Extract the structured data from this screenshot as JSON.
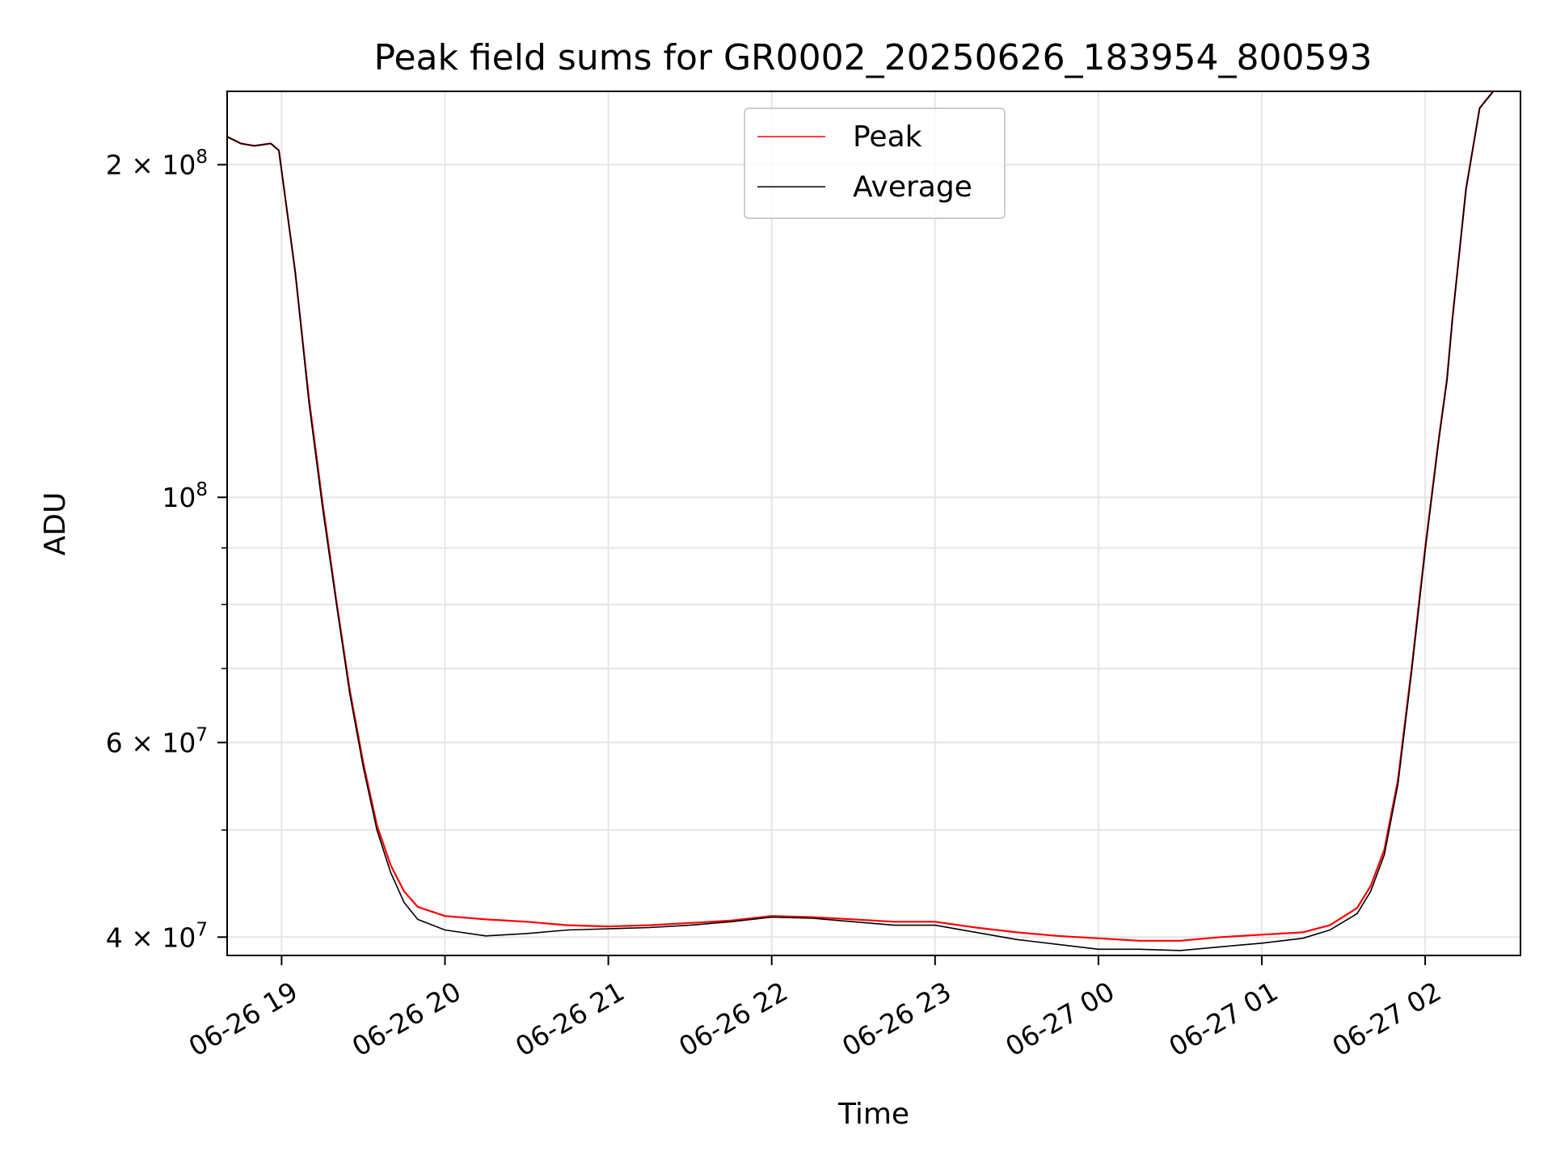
{
  "chart_data": {
    "type": "line",
    "title": "Peak field sums for GR0002_20250626_183954_800593",
    "xlabel": "Time",
    "ylabel": "ADU",
    "yscale": "log",
    "ylim": [
      38500000,
      233000000
    ],
    "xlim": [
      "2025-06-26 18:40",
      "2025-06-27 02:35"
    ],
    "grid": true,
    "legend_position": "upper center",
    "x_ticks": [
      "2025-06-26 19:00",
      "2025-06-26 20:00",
      "2025-06-26 21:00",
      "2025-06-26 22:00",
      "2025-06-26 23:00",
      "2025-06-27 00:00",
      "2025-06-27 01:00",
      "2025-06-27 02:00"
    ],
    "x_tick_labels": [
      "06-26 19",
      "06-26 20",
      "06-26 21",
      "06-26 22",
      "06-26 23",
      "06-27 00",
      "06-27 01",
      "06-27 02"
    ],
    "y_ticks": [
      {
        "value": 40000000,
        "mantissa": "4",
        "exp": "7"
      },
      {
        "value": 60000000,
        "mantissa": "6",
        "exp": "7"
      },
      {
        "value": 100000000,
        "mantissa": "",
        "exp": "8"
      },
      {
        "value": 200000000,
        "mantissa": "2",
        "exp": "8"
      }
    ],
    "y_minor_ticks": [
      50000000,
      70000000,
      80000000,
      90000000
    ],
    "series": [
      {
        "name": "Peak",
        "color": "#ff0000",
        "x": [
          "2025-06-26 18:40",
          "2025-06-26 18:45",
          "2025-06-26 18:50",
          "2025-06-26 18:56",
          "2025-06-26 18:59",
          "2025-06-26 19:05",
          "2025-06-26 19:10",
          "2025-06-26 19:15",
          "2025-06-26 19:20",
          "2025-06-26 19:25",
          "2025-06-26 19:30",
          "2025-06-26 19:35",
          "2025-06-26 19:40",
          "2025-06-26 19:45",
          "2025-06-26 19:50",
          "2025-06-26 20:00",
          "2025-06-26 20:15",
          "2025-06-26 20:30",
          "2025-06-26 20:45",
          "2025-06-26 21:00",
          "2025-06-26 21:15",
          "2025-06-26 21:30",
          "2025-06-26 21:45",
          "2025-06-26 22:00",
          "2025-06-26 22:15",
          "2025-06-26 22:30",
          "2025-06-26 22:45",
          "2025-06-26 23:00",
          "2025-06-26 23:15",
          "2025-06-26 23:30",
          "2025-06-26 23:45",
          "2025-06-27 00:00",
          "2025-06-27 00:15",
          "2025-06-27 00:30",
          "2025-06-27 00:45",
          "2025-06-27 01:00",
          "2025-06-27 01:15",
          "2025-06-27 01:25",
          "2025-06-27 01:35",
          "2025-06-27 01:40",
          "2025-06-27 01:45",
          "2025-06-27 01:50",
          "2025-06-27 01:55",
          "2025-06-27 02:00",
          "2025-06-27 02:05",
          "2025-06-27 02:08",
          "2025-06-27 02:10",
          "2025-06-27 02:15",
          "2025-06-27 02:20",
          "2025-06-27 02:25"
        ],
        "y": [
          212000000,
          209000000,
          208000000,
          209000000,
          206000000,
          160000000,
          123000000,
          99000000,
          81000000,
          67000000,
          57500000,
          50500000,
          46500000,
          44000000,
          42600000,
          41800000,
          41500000,
          41300000,
          41000000,
          40900000,
          41000000,
          41200000,
          41400000,
          41800000,
          41700000,
          41500000,
          41300000,
          41300000,
          40800000,
          40400000,
          40100000,
          39900000,
          39700000,
          39700000,
          40000000,
          40200000,
          40400000,
          41000000,
          42500000,
          44500000,
          48000000,
          55500000,
          70000000,
          90000000,
          113000000,
          128000000,
          145000000,
          190000000,
          225000000,
          233000000
        ]
      },
      {
        "name": "Average",
        "color": "#000000",
        "x": [
          "2025-06-26 18:40",
          "2025-06-26 18:45",
          "2025-06-26 18:50",
          "2025-06-26 18:56",
          "2025-06-26 18:59",
          "2025-06-26 19:05",
          "2025-06-26 19:10",
          "2025-06-26 19:15",
          "2025-06-26 19:20",
          "2025-06-26 19:25",
          "2025-06-26 19:30",
          "2025-06-26 19:35",
          "2025-06-26 19:40",
          "2025-06-26 19:45",
          "2025-06-26 19:50",
          "2025-06-26 20:00",
          "2025-06-26 20:15",
          "2025-06-26 20:30",
          "2025-06-26 20:45",
          "2025-06-26 21:00",
          "2025-06-26 21:15",
          "2025-06-26 21:30",
          "2025-06-26 21:45",
          "2025-06-26 22:00",
          "2025-06-26 22:15",
          "2025-06-26 22:30",
          "2025-06-26 22:45",
          "2025-06-26 23:00",
          "2025-06-26 23:15",
          "2025-06-26 23:30",
          "2025-06-26 23:45",
          "2025-06-27 00:00",
          "2025-06-27 00:15",
          "2025-06-27 00:30",
          "2025-06-27 00:45",
          "2025-06-27 01:00",
          "2025-06-27 01:15",
          "2025-06-27 01:25",
          "2025-06-27 01:35",
          "2025-06-27 01:40",
          "2025-06-27 01:45",
          "2025-06-27 01:50",
          "2025-06-27 01:55",
          "2025-06-27 02:00",
          "2025-06-27 02:05",
          "2025-06-27 02:08",
          "2025-06-27 02:10",
          "2025-06-27 02:15",
          "2025-06-27 02:20",
          "2025-06-27 02:25"
        ],
        "y": [
          212000000,
          209000000,
          208000000,
          209000000,
          206000000,
          160000000,
          122000000,
          98000000,
          80500000,
          66500000,
          57000000,
          50000000,
          45800000,
          43000000,
          41500000,
          40600000,
          40100000,
          40300000,
          40600000,
          40700000,
          40800000,
          41000000,
          41300000,
          41700000,
          41600000,
          41300000,
          41000000,
          41000000,
          40400000,
          39800000,
          39400000,
          39000000,
          39000000,
          38900000,
          39200000,
          39500000,
          39900000,
          40600000,
          42000000,
          44000000,
          47500000,
          55000000,
          69500000,
          89500000,
          112500000,
          127500000,
          145000000,
          190000000,
          225000000,
          233000000
        ]
      }
    ]
  }
}
